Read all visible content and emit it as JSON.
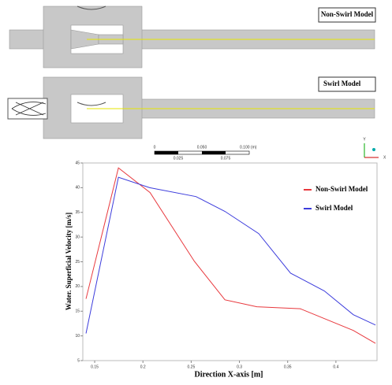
{
  "geometry": {
    "models": [
      "Non-Swirl Model",
      "Swirl Model"
    ],
    "scale_top": [
      "0",
      "0.050",
      "0.100 (m)"
    ],
    "scale_bottom": [
      "0.025",
      "0.075"
    ],
    "axes": [
      "Y",
      "X"
    ]
  },
  "chart_data": {
    "type": "line",
    "xlabel": "Direction X-axis [m]",
    "ylabel": "Water. Superficial Velocity [m/s]",
    "series": [
      {
        "name": "Non-Swirl Model",
        "color": "#e8383d",
        "x": [
          0.141,
          0.1746,
          0.2074,
          0.2533,
          0.285,
          0.318,
          0.363,
          0.418,
          0.441
        ],
        "values": [
          17.5,
          44.0,
          39.0,
          25.1,
          17.3,
          15.9,
          15.5,
          11.1,
          8.5
        ]
      },
      {
        "name": "Swirl Model",
        "color": "#3c3cdc",
        "x": [
          0.141,
          0.1746,
          0.207,
          0.255,
          0.285,
          0.32,
          0.353,
          0.388,
          0.418,
          0.441
        ],
        "values": [
          10.5,
          42.1,
          40.0,
          38.2,
          35.2,
          30.7,
          22.7,
          19.1,
          14.3,
          12.2
        ]
      }
    ],
    "xlim": [
      0.1377,
      0.4426
    ],
    "xticks": [
      0.15,
      0.2,
      0.25,
      0.3,
      0.35,
      0.4
    ],
    "ylim": [
      5,
      45
    ],
    "yticks": [
      5,
      10,
      15,
      20,
      25,
      30,
      35,
      40,
      45
    ]
  }
}
